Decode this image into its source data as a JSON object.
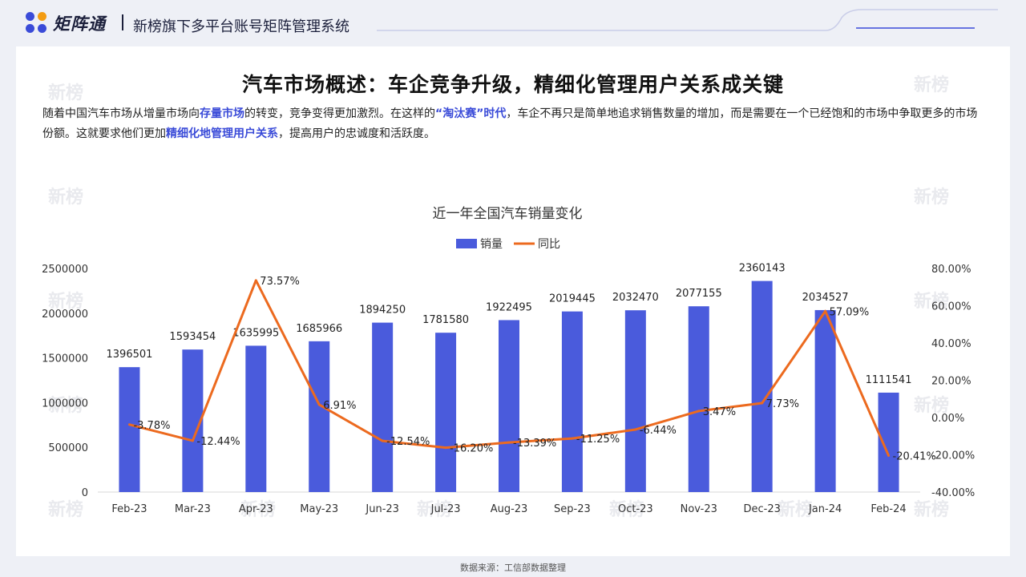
{
  "header": {
    "logo_text": "矩阵通",
    "system_title": "新榜旗下多平台账号矩阵管理系统"
  },
  "page": {
    "headline": "汽车市场概述：车企竞争升级，精细化管理用户关系成关键",
    "intro": [
      {
        "text": "随着中国汽车市场从增量市场向",
        "bold": false
      },
      {
        "text": "存量市场",
        "bold": true
      },
      {
        "text": "的转变，竞争变得更加激烈。在这样的",
        "bold": false
      },
      {
        "text": "“淘汰赛”时代",
        "bold": true
      },
      {
        "text": "，车企不再只是简单地追求销售数量的增加，而是需要在一个已经饱和的市场中争取更多的市场份额。这就要求他们更加",
        "bold": false
      },
      {
        "text": "精细化地管理用户关系",
        "bold": true
      },
      {
        "text": "，提高用户的忠诚度和活跃度。",
        "bold": false
      }
    ],
    "watermark_text": "新榜",
    "source": "数据来源：工信部数据整理"
  },
  "colors": {
    "bar": "#4a5bdc",
    "line": "#ec6a1f",
    "accent": "#3a4bd8"
  },
  "chart_data": {
    "type": "bar",
    "title": "近一年全国汽车销量变化",
    "legend_position": "top",
    "categories": [
      "Feb-23",
      "Mar-23",
      "Apr-23",
      "May-23",
      "Jun-23",
      "Jul-23",
      "Aug-23",
      "Sep-23",
      "Oct-23",
      "Nov-23",
      "Dec-23",
      "Jan-24",
      "Feb-24"
    ],
    "series": [
      {
        "name": "销量",
        "type": "bar",
        "axis": "left",
        "values": [
          1396501,
          1593454,
          1635995,
          1685966,
          1894250,
          1781580,
          1922495,
          2019445,
          2032470,
          2077155,
          2360143,
          2034527,
          1111541
        ],
        "labels": [
          "1396501",
          "1593454",
          "1635995",
          "1685966",
          "1894250",
          "1781580",
          "1922495",
          "2019445",
          "2032470",
          "2077155",
          "2360143",
          "2034527",
          "1111541"
        ]
      },
      {
        "name": "同比",
        "type": "line",
        "axis": "right",
        "values": [
          -3.78,
          -12.44,
          73.57,
          6.91,
          -12.54,
          -16.2,
          -13.39,
          -11.25,
          -6.44,
          3.47,
          7.73,
          57.09,
          -20.41
        ],
        "labels": [
          "-3.78%",
          "-12.44%",
          "73.57%",
          "6.91%",
          "-12.54%",
          "-16.20%",
          "-13.39%",
          "-11.25%",
          "-6.44%",
          "3.47%",
          "7.73%",
          "57.09%",
          "-20.41%"
        ]
      }
    ],
    "y_left": {
      "min": 0,
      "max": 2500000,
      "ticks": [
        "0",
        "500000",
        "1000000",
        "1500000",
        "2000000",
        "2500000"
      ]
    },
    "y_right": {
      "min": -40,
      "max": 80,
      "ticks": [
        "-40.00%",
        "-20.00%",
        "0.00%",
        "20.00%",
        "40.00%",
        "60.00%",
        "80.00%"
      ]
    },
    "grid": false
  }
}
